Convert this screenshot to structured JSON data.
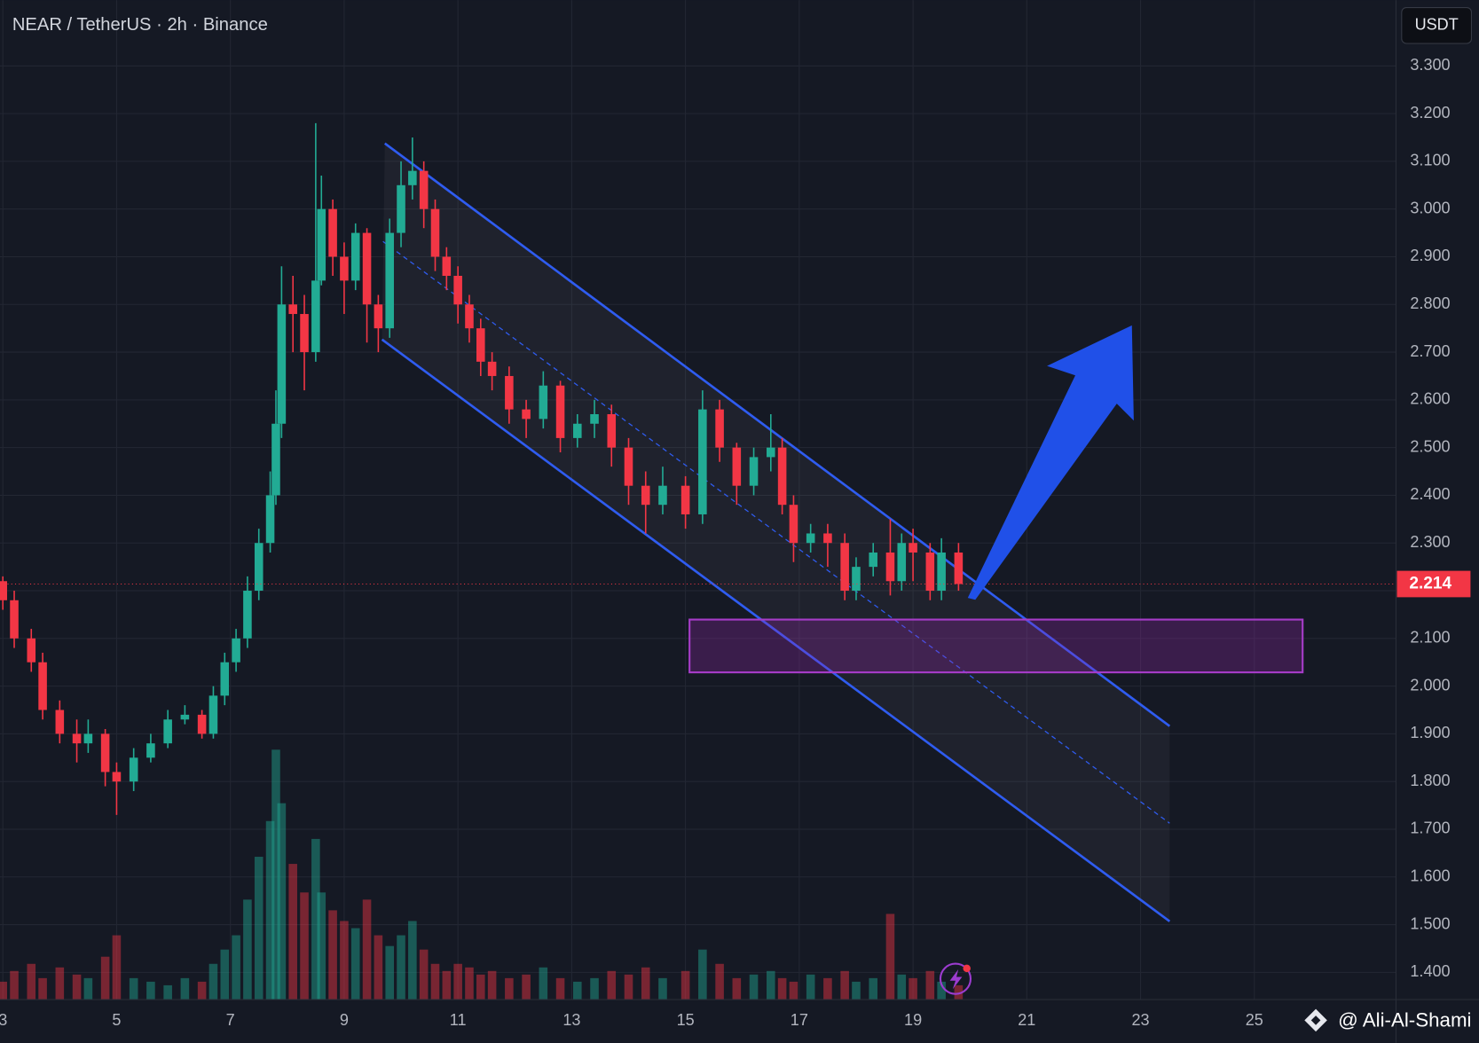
{
  "chart_data": {
    "type": "candlestick",
    "title": "NEAR / TetherUS · 2h · Binance",
    "currency": "USDT",
    "watermark": "@ Ali-Al-Shami",
    "last_price": 2.214,
    "up_color": "#22ab94",
    "down_color": "#f23645",
    "grid": true,
    "xlim": [
      2.95,
      27.49
    ],
    "xticks": [
      3,
      5,
      7,
      9,
      11,
      13,
      15,
      17,
      19,
      21,
      23,
      25
    ],
    "ylim": [
      1.343,
      3.438
    ],
    "yticks": [
      {
        "value": 1.4,
        "label": "1.400"
      },
      {
        "value": 1.5,
        "label": "1.500"
      },
      {
        "value": 1.6,
        "label": "1.600"
      },
      {
        "value": 1.7,
        "label": "1.700"
      },
      {
        "value": 1.8,
        "label": "1.800"
      },
      {
        "value": 1.9,
        "label": "1.900"
      },
      {
        "value": 2.0,
        "label": "2.000"
      },
      {
        "value": 2.1,
        "label": "2.100"
      },
      {
        "value": 2.2,
        "label": "2.200"
      },
      {
        "value": 2.3,
        "label": "2.300"
      },
      {
        "value": 2.4,
        "label": "2.400"
      },
      {
        "value": 2.5,
        "label": "2.500"
      },
      {
        "value": 2.6,
        "label": "2.600"
      },
      {
        "value": 2.7,
        "label": "2.700"
      },
      {
        "value": 2.8,
        "label": "2.800"
      },
      {
        "value": 2.9,
        "label": "2.900"
      },
      {
        "value": 3.0,
        "label": "3.000"
      },
      {
        "value": 3.1,
        "label": "3.100"
      },
      {
        "value": 3.2,
        "label": "3.200"
      },
      {
        "value": 3.3,
        "label": "3.300"
      }
    ],
    "candles": {
      "x": [
        3.0,
        3.2,
        3.5,
        3.7,
        4.0,
        4.3,
        4.5,
        4.8,
        5.0,
        5.3,
        5.6,
        5.9,
        6.2,
        6.5,
        6.7,
        6.9,
        7.1,
        7.3,
        7.5,
        7.7,
        7.8,
        7.9,
        8.1,
        8.3,
        8.5,
        8.6,
        8.8,
        9.0,
        9.2,
        9.4,
        9.6,
        9.8,
        10.0,
        10.2,
        10.4,
        10.6,
        10.8,
        11.0,
        11.2,
        11.4,
        11.6,
        11.9,
        12.2,
        12.5,
        12.8,
        13.1,
        13.4,
        13.7,
        14.0,
        14.3,
        14.6,
        15.0,
        15.3,
        15.6,
        15.9,
        16.2,
        16.5,
        16.7,
        16.9,
        17.2,
        17.5,
        17.8,
        18.0,
        18.3,
        18.6,
        18.8,
        19.0,
        19.3,
        19.5,
        19.8
      ],
      "open": [
        2.22,
        2.18,
        2.1,
        2.05,
        1.95,
        1.9,
        1.88,
        1.9,
        1.82,
        1.8,
        1.85,
        1.88,
        1.93,
        1.94,
        1.9,
        1.98,
        2.05,
        2.1,
        2.2,
        2.3,
        2.4,
        2.55,
        2.8,
        2.78,
        2.7,
        2.85,
        3.0,
        2.9,
        2.85,
        2.95,
        2.8,
        2.75,
        2.95,
        3.05,
        3.08,
        3.0,
        2.9,
        2.86,
        2.8,
        2.75,
        2.68,
        2.65,
        2.58,
        2.56,
        2.63,
        2.52,
        2.55,
        2.57,
        2.5,
        2.42,
        2.38,
        2.42,
        2.36,
        2.58,
        2.5,
        2.42,
        2.48,
        2.5,
        2.38,
        2.3,
        2.32,
        2.3,
        2.2,
        2.25,
        2.28,
        2.22,
        2.3,
        2.28,
        2.2,
        2.28
      ],
      "high": [
        2.23,
        2.2,
        2.12,
        2.07,
        1.97,
        1.93,
        1.93,
        1.91,
        1.84,
        1.87,
        1.9,
        1.95,
        1.96,
        1.95,
        2.0,
        2.07,
        2.12,
        2.23,
        2.33,
        2.45,
        2.62,
        2.88,
        2.86,
        2.82,
        3.18,
        3.07,
        3.02,
        2.93,
        2.97,
        2.96,
        2.82,
        2.98,
        3.1,
        3.15,
        3.1,
        3.02,
        2.92,
        2.88,
        2.82,
        2.77,
        2.7,
        2.67,
        2.6,
        2.66,
        2.64,
        2.57,
        2.6,
        2.59,
        2.52,
        2.45,
        2.46,
        2.44,
        2.62,
        2.6,
        2.51,
        2.5,
        2.57,
        2.52,
        2.4,
        2.34,
        2.34,
        2.32,
        2.27,
        2.3,
        2.35,
        2.32,
        2.33,
        2.3,
        2.31,
        2.3
      ],
      "low": [
        2.16,
        2.08,
        2.03,
        1.93,
        1.88,
        1.84,
        1.86,
        1.79,
        1.73,
        1.78,
        1.84,
        1.87,
        1.92,
        1.89,
        1.89,
        1.96,
        2.03,
        2.08,
        2.18,
        2.28,
        2.38,
        2.52,
        2.7,
        2.62,
        2.68,
        2.84,
        2.86,
        2.78,
        2.83,
        2.72,
        2.7,
        2.73,
        2.92,
        3.02,
        2.96,
        2.87,
        2.83,
        2.76,
        2.72,
        2.65,
        2.62,
        2.55,
        2.52,
        2.54,
        2.49,
        2.5,
        2.52,
        2.46,
        2.38,
        2.32,
        2.36,
        2.33,
        2.34,
        2.47,
        2.38,
        2.4,
        2.45,
        2.36,
        2.26,
        2.28,
        2.25,
        2.18,
        2.18,
        2.23,
        2.19,
        2.2,
        2.22,
        2.18,
        2.18,
        2.2
      ],
      "close": [
        2.18,
        2.1,
        2.05,
        1.95,
        1.9,
        1.88,
        1.9,
        1.82,
        1.8,
        1.85,
        1.88,
        1.93,
        1.94,
        1.9,
        1.98,
        2.05,
        2.1,
        2.2,
        2.3,
        2.4,
        2.55,
        2.8,
        2.78,
        2.7,
        2.85,
        3.0,
        2.9,
        2.85,
        2.95,
        2.8,
        2.75,
        2.95,
        3.05,
        3.08,
        3.0,
        2.9,
        2.86,
        2.8,
        2.75,
        2.68,
        2.65,
        2.58,
        2.56,
        2.63,
        2.52,
        2.55,
        2.57,
        2.5,
        2.42,
        2.38,
        2.42,
        2.36,
        2.58,
        2.5,
        2.42,
        2.48,
        2.5,
        2.38,
        2.3,
        2.32,
        2.3,
        2.2,
        2.25,
        2.28,
        2.22,
        2.3,
        2.28,
        2.2,
        2.28,
        2.214
      ],
      "volume": [
        5,
        8,
        10,
        6,
        9,
        7,
        6,
        12,
        18,
        6,
        5,
        4,
        6,
        5,
        10,
        14,
        18,
        28,
        40,
        50,
        70,
        55,
        38,
        30,
        45,
        30,
        25,
        22,
        20,
        28,
        18,
        15,
        18,
        22,
        14,
        10,
        8,
        10,
        9,
        7,
        8,
        6,
        7,
        9,
        6,
        5,
        6,
        8,
        7,
        9,
        6,
        8,
        14,
        10,
        6,
        7,
        8,
        6,
        5,
        7,
        6,
        8,
        5,
        6,
        24,
        7,
        6,
        8,
        5,
        4
      ]
    }
  }
}
